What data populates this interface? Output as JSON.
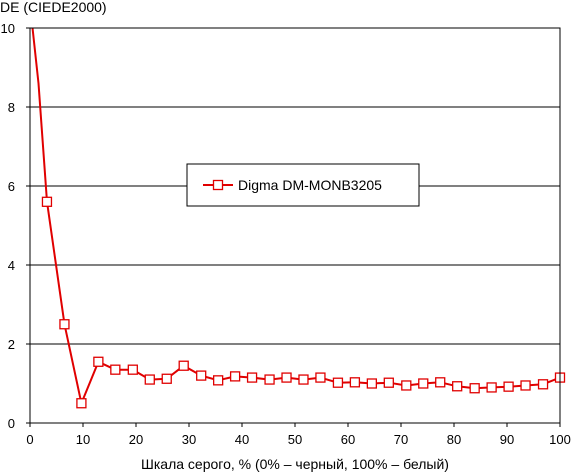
{
  "chart_data": {
    "type": "line",
    "title": "",
    "ylabel": "DE (CIEDE2000)",
    "xlabel": "Шкала серого, % (0% – черный, 100% – белый)",
    "xlim": [
      0,
      100
    ],
    "ylim": [
      0,
      10
    ],
    "xticks": [
      "0",
      "10",
      "20",
      "30",
      "40",
      "50",
      "60",
      "70",
      "80",
      "90",
      "100"
    ],
    "yticks": [
      "0",
      "2",
      "4",
      "6",
      "8",
      "10"
    ],
    "grid": "horizontal",
    "legend_position": "center-left",
    "series": [
      {
        "name": "Digma DM-MONB3205",
        "color": "#e00000",
        "marker": "open-square",
        "x": [
          0.4,
          1.6,
          3.2,
          6.5,
          9.7,
          12.9,
          16.1,
          19.4,
          22.6,
          25.8,
          29.0,
          32.3,
          35.5,
          38.7,
          41.9,
          45.2,
          48.4,
          51.6,
          54.8,
          58.1,
          61.3,
          64.5,
          67.7,
          71.0,
          74.2,
          77.4,
          80.6,
          83.9,
          87.1,
          90.3,
          93.5,
          96.8,
          100.0
        ],
        "y": [
          10.1,
          8.6,
          5.6,
          2.5,
          0.5,
          1.55,
          1.35,
          1.35,
          1.1,
          1.12,
          1.45,
          1.2,
          1.08,
          1.18,
          1.15,
          1.1,
          1.15,
          1.1,
          1.15,
          1.02,
          1.03,
          1.0,
          1.02,
          0.95,
          1.0,
          1.03,
          0.93,
          0.88,
          0.9,
          0.92,
          0.95,
          0.98,
          1.15
        ],
        "marker_from_index": 2
      }
    ]
  }
}
